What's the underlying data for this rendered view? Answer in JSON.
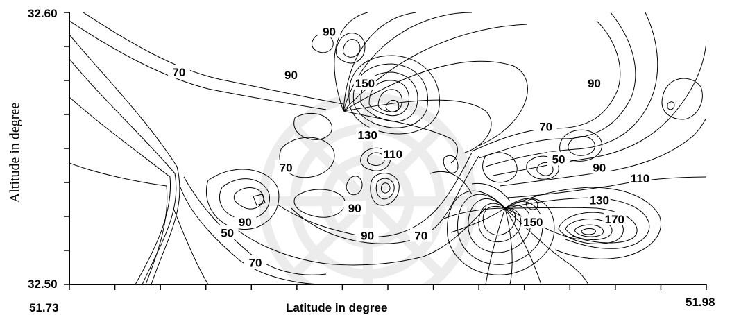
{
  "chart_data": {
    "type": "contour",
    "xlabel": "Latitude in degree",
    "ylabel": "Altitude in degree",
    "x_ticks": [
      "51.73",
      "51.98"
    ],
    "y_ticks": [
      "32.60",
      "32.50"
    ],
    "xlim": [
      51.73,
      51.98
    ],
    "ylim": [
      32.5,
      32.6
    ],
    "grid": false,
    "contour_levels": [
      50,
      70,
      90,
      110,
      130,
      150,
      170
    ],
    "contour_labels": [
      {
        "text": "70",
        "x": 51.773,
        "y": 32.578
      },
      {
        "text": "90",
        "x": 51.832,
        "y": 32.593
      },
      {
        "text": "90",
        "x": 51.817,
        "y": 32.577
      },
      {
        "text": "150",
        "x": 51.846,
        "y": 32.574
      },
      {
        "text": "130",
        "x": 51.847,
        "y": 32.555
      },
      {
        "text": "110",
        "x": 51.857,
        "y": 32.548
      },
      {
        "text": "70",
        "x": 51.815,
        "y": 32.543
      },
      {
        "text": "90",
        "x": 51.842,
        "y": 32.528
      },
      {
        "text": "90",
        "x": 51.799,
        "y": 32.523
      },
      {
        "text": "90",
        "x": 51.847,
        "y": 32.518
      },
      {
        "text": "70",
        "x": 51.868,
        "y": 32.518
      },
      {
        "text": "50",
        "x": 51.792,
        "y": 32.519
      },
      {
        "text": "70",
        "x": 51.803,
        "y": 32.508
      },
      {
        "text": "90",
        "x": 51.936,
        "y": 32.574
      },
      {
        "text": "70",
        "x": 51.917,
        "y": 32.558
      },
      {
        "text": "50",
        "x": 51.922,
        "y": 32.546
      },
      {
        "text": "90",
        "x": 51.938,
        "y": 32.543
      },
      {
        "text": "110",
        "x": 51.954,
        "y": 32.539
      },
      {
        "text": "130",
        "x": 51.938,
        "y": 32.531
      },
      {
        "text": "150",
        "x": 51.912,
        "y": 32.523
      },
      {
        "text": "170",
        "x": 51.944,
        "y": 32.524
      }
    ]
  }
}
